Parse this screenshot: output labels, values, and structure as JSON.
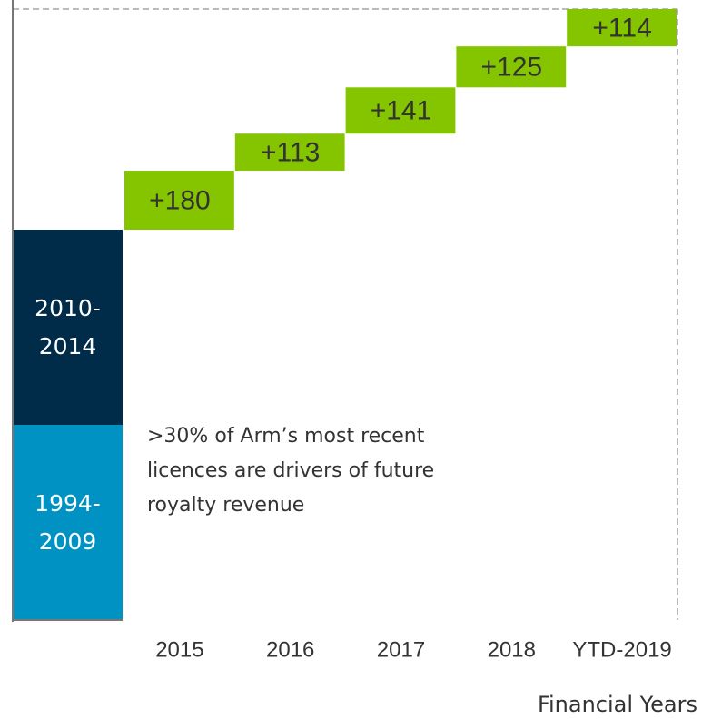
{
  "chart_data": {
    "type": "waterfall",
    "base": [
      {
        "name": "1994-2009",
        "color": "#0092c2"
      },
      {
        "name": "2010-2014",
        "color": "#002b49"
      }
    ],
    "categories": [
      "2015",
      "2016",
      "2017",
      "2018",
      "YTD-2019"
    ],
    "values": [
      180,
      113,
      141,
      125,
      114
    ],
    "value_labels": [
      "+180",
      "+113",
      "+141",
      "+125",
      "+114"
    ],
    "color": "#84c500",
    "xlabel": "Financial Years",
    "annotation": ">30% of Arm’s most recent licences are drivers of future royalty revenue"
  }
}
